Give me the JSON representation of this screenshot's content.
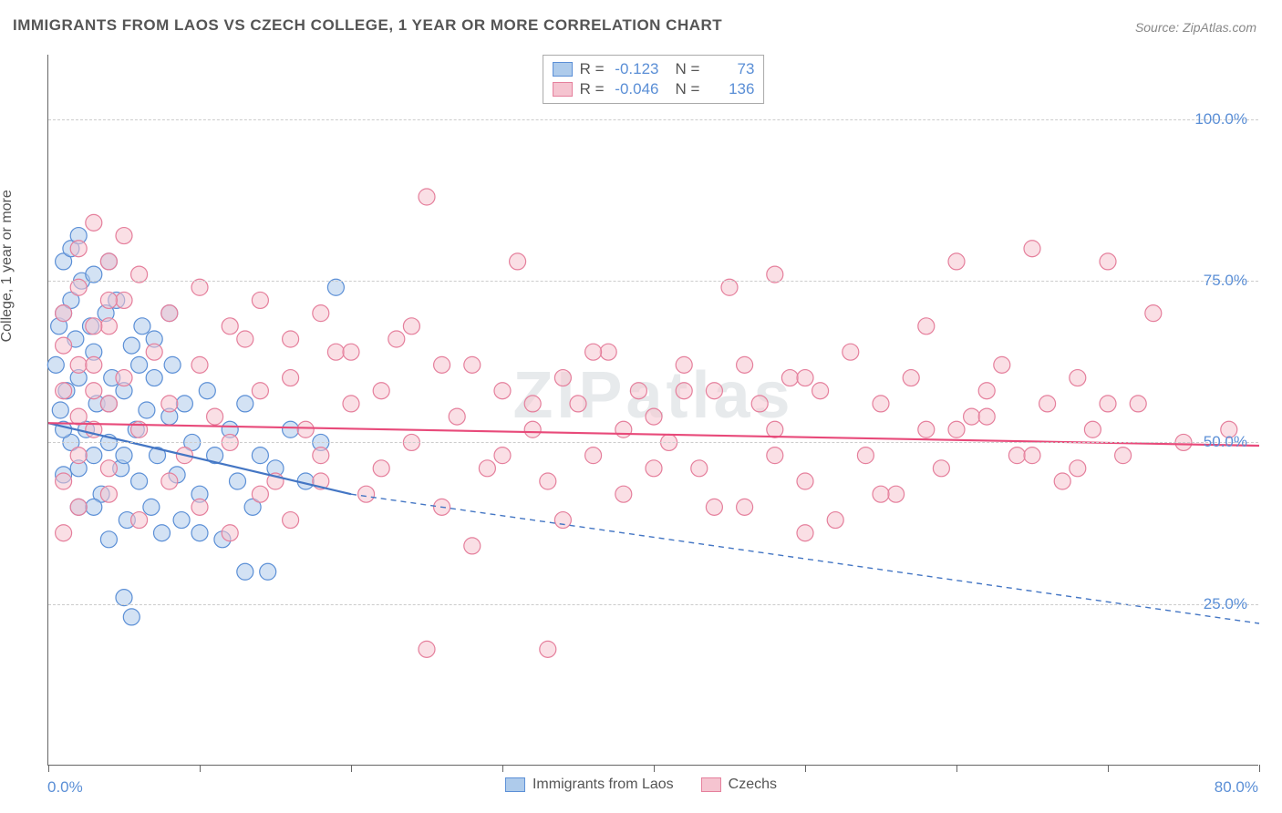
{
  "title": "IMMIGRANTS FROM LAOS VS CZECH COLLEGE, 1 YEAR OR MORE CORRELATION CHART",
  "source": "Source: ZipAtlas.com",
  "watermark": "ZIPatlas",
  "ylabel": "College, 1 year or more",
  "chart": {
    "type": "scatter",
    "xlim": [
      0,
      80
    ],
    "ylim": [
      0,
      110
    ],
    "x_ticks": [
      0,
      10,
      20,
      30,
      40,
      50,
      60,
      70,
      80
    ],
    "x_tick_labels": {
      "left": "0.0%",
      "right": "80.0%"
    },
    "y_gridlines": [
      25,
      50,
      75,
      100
    ],
    "y_tick_labels": [
      "25.0%",
      "50.0%",
      "75.0%",
      "100.0%"
    ],
    "background_color": "#ffffff",
    "grid_color": "#cccccc",
    "axis_color": "#666666",
    "marker_radius": 9,
    "marker_opacity": 0.55,
    "series": [
      {
        "name": "Immigrants from Laos",
        "color_fill": "#aecbeb",
        "color_stroke": "#5b8fd6",
        "R": "-0.123",
        "N": "73",
        "trend": {
          "x1": 0,
          "y1": 53,
          "x2": 20,
          "y2": 42,
          "dash_x2": 80,
          "dash_y2": 22,
          "color": "#4476c4",
          "width": 2.2
        },
        "points": [
          [
            0.5,
            62
          ],
          [
            0.7,
            68
          ],
          [
            0.8,
            55
          ],
          [
            1,
            70
          ],
          [
            1,
            45
          ],
          [
            1.2,
            58
          ],
          [
            1.5,
            72
          ],
          [
            1.5,
            50
          ],
          [
            1.8,
            66
          ],
          [
            2,
            60
          ],
          [
            2,
            40
          ],
          [
            2.2,
            75
          ],
          [
            2.5,
            52
          ],
          [
            2.8,
            68
          ],
          [
            3,
            48
          ],
          [
            3,
            64
          ],
          [
            3.2,
            56
          ],
          [
            3.5,
            42
          ],
          [
            3.8,
            70
          ],
          [
            4,
            50
          ],
          [
            4,
            35
          ],
          [
            4.2,
            60
          ],
          [
            4.5,
            72
          ],
          [
            4.8,
            46
          ],
          [
            5,
            58
          ],
          [
            5.2,
            38
          ],
          [
            5.5,
            65
          ],
          [
            5.8,
            52
          ],
          [
            6,
            44
          ],
          [
            6.2,
            68
          ],
          [
            6.5,
            55
          ],
          [
            6.8,
            40
          ],
          [
            7,
            60
          ],
          [
            7.2,
            48
          ],
          [
            7.5,
            36
          ],
          [
            8,
            54
          ],
          [
            8.2,
            62
          ],
          [
            8.5,
            45
          ],
          [
            8.8,
            38
          ],
          [
            9,
            56
          ],
          [
            9.5,
            50
          ],
          [
            10,
            42
          ],
          [
            10,
            36
          ],
          [
            10.5,
            58
          ],
          [
            11,
            48
          ],
          [
            11.5,
            35
          ],
          [
            12,
            52
          ],
          [
            12.5,
            44
          ],
          [
            13,
            56
          ],
          [
            13.5,
            40
          ],
          [
            14,
            48
          ],
          [
            14.5,
            30
          ],
          [
            15,
            46
          ],
          [
            16,
            52
          ],
          [
            17,
            44
          ],
          [
            18,
            50
          ],
          [
            19,
            74
          ],
          [
            13,
            30
          ],
          [
            5,
            26
          ],
          [
            5.5,
            23
          ],
          [
            6,
            62
          ],
          [
            7,
            66
          ],
          [
            8,
            70
          ],
          [
            1,
            78
          ],
          [
            1.5,
            80
          ],
          [
            2,
            82
          ],
          [
            3,
            76
          ],
          [
            4,
            78
          ],
          [
            1,
            52
          ],
          [
            2,
            46
          ],
          [
            3,
            40
          ],
          [
            4,
            56
          ],
          [
            5,
            48
          ]
        ]
      },
      {
        "name": "Czechs",
        "color_fill": "#f5c4d0",
        "color_stroke": "#e57f9c",
        "R": "-0.046",
        "N": "136",
        "trend": {
          "x1": 0,
          "y1": 53,
          "x2": 80,
          "y2": 49.5,
          "color": "#e84a7a",
          "width": 2.2
        },
        "points": [
          [
            1,
            65
          ],
          [
            2,
            62
          ],
          [
            3,
            58
          ],
          [
            4,
            68
          ],
          [
            5,
            60
          ],
          [
            6,
            52
          ],
          [
            7,
            64
          ],
          [
            8,
            56
          ],
          [
            9,
            48
          ],
          [
            10,
            62
          ],
          [
            11,
            54
          ],
          [
            12,
            50
          ],
          [
            13,
            66
          ],
          [
            14,
            58
          ],
          [
            15,
            44
          ],
          [
            16,
            60
          ],
          [
            17,
            52
          ],
          [
            18,
            48
          ],
          [
            19,
            64
          ],
          [
            20,
            56
          ],
          [
            21,
            42
          ],
          [
            22,
            58
          ],
          [
            23,
            66
          ],
          [
            24,
            50
          ],
          [
            25,
            88
          ],
          [
            26,
            40
          ],
          [
            27,
            54
          ],
          [
            28,
            62
          ],
          [
            29,
            46
          ],
          [
            30,
            58
          ],
          [
            31,
            78
          ],
          [
            32,
            52
          ],
          [
            33,
            44
          ],
          [
            34,
            60
          ],
          [
            35,
            56
          ],
          [
            36,
            48
          ],
          [
            37,
            64
          ],
          [
            38,
            42
          ],
          [
            39,
            58
          ],
          [
            40,
            54
          ],
          [
            41,
            50
          ],
          [
            42,
            62
          ],
          [
            43,
            46
          ],
          [
            44,
            58
          ],
          [
            45,
            74
          ],
          [
            46,
            40
          ],
          [
            47,
            56
          ],
          [
            48,
            52
          ],
          [
            49,
            60
          ],
          [
            50,
            44
          ],
          [
            51,
            58
          ],
          [
            52,
            38
          ],
          [
            53,
            64
          ],
          [
            54,
            48
          ],
          [
            55,
            56
          ],
          [
            56,
            42
          ],
          [
            57,
            60
          ],
          [
            58,
            52
          ],
          [
            59,
            46
          ],
          [
            60,
            78
          ],
          [
            61,
            54
          ],
          [
            62,
            58
          ],
          [
            63,
            62
          ],
          [
            64,
            48
          ],
          [
            65,
            80
          ],
          [
            66,
            56
          ],
          [
            67,
            44
          ],
          [
            68,
            60
          ],
          [
            69,
            52
          ],
          [
            70,
            78
          ],
          [
            71,
            48
          ],
          [
            72,
            56
          ],
          [
            73,
            70
          ],
          [
            5,
            72
          ],
          [
            6,
            76
          ],
          [
            8,
            70
          ],
          [
            10,
            74
          ],
          [
            12,
            68
          ],
          [
            14,
            72
          ],
          [
            16,
            66
          ],
          [
            18,
            70
          ],
          [
            20,
            64
          ],
          [
            4,
            42
          ],
          [
            6,
            38
          ],
          [
            8,
            44
          ],
          [
            10,
            40
          ],
          [
            12,
            36
          ],
          [
            14,
            42
          ],
          [
            16,
            38
          ],
          [
            18,
            44
          ],
          [
            25,
            18
          ],
          [
            33,
            18
          ],
          [
            24,
            68
          ],
          [
            26,
            62
          ],
          [
            28,
            34
          ],
          [
            30,
            48
          ],
          [
            32,
            56
          ],
          [
            34,
            38
          ],
          [
            36,
            64
          ],
          [
            38,
            52
          ],
          [
            40,
            46
          ],
          [
            42,
            58
          ],
          [
            44,
            40
          ],
          [
            46,
            62
          ],
          [
            48,
            48
          ],
          [
            50,
            36
          ],
          [
            2,
            80
          ],
          [
            3,
            84
          ],
          [
            4,
            78
          ],
          [
            5,
            82
          ],
          [
            1,
            58
          ],
          [
            2,
            54
          ],
          [
            3,
            62
          ],
          [
            4,
            56
          ],
          [
            1,
            44
          ],
          [
            2,
            48
          ],
          [
            3,
            52
          ],
          [
            4,
            46
          ],
          [
            1,
            70
          ],
          [
            2,
            74
          ],
          [
            3,
            68
          ],
          [
            4,
            72
          ],
          [
            62,
            54
          ],
          [
            48,
            76
          ],
          [
            58,
            68
          ],
          [
            68,
            46
          ],
          [
            1,
            36
          ],
          [
            2,
            40
          ],
          [
            50,
            60
          ],
          [
            55,
            42
          ],
          [
            60,
            52
          ],
          [
            65,
            48
          ],
          [
            70,
            56
          ],
          [
            75,
            50
          ],
          [
            78,
            52
          ],
          [
            22,
            46
          ]
        ]
      }
    ]
  },
  "bottom_legend": [
    {
      "label": "Immigrants from Laos",
      "fill": "#aecbeb",
      "stroke": "#5b8fd6"
    },
    {
      "label": "Czechs",
      "fill": "#f5c4d0",
      "stroke": "#e57f9c"
    }
  ]
}
